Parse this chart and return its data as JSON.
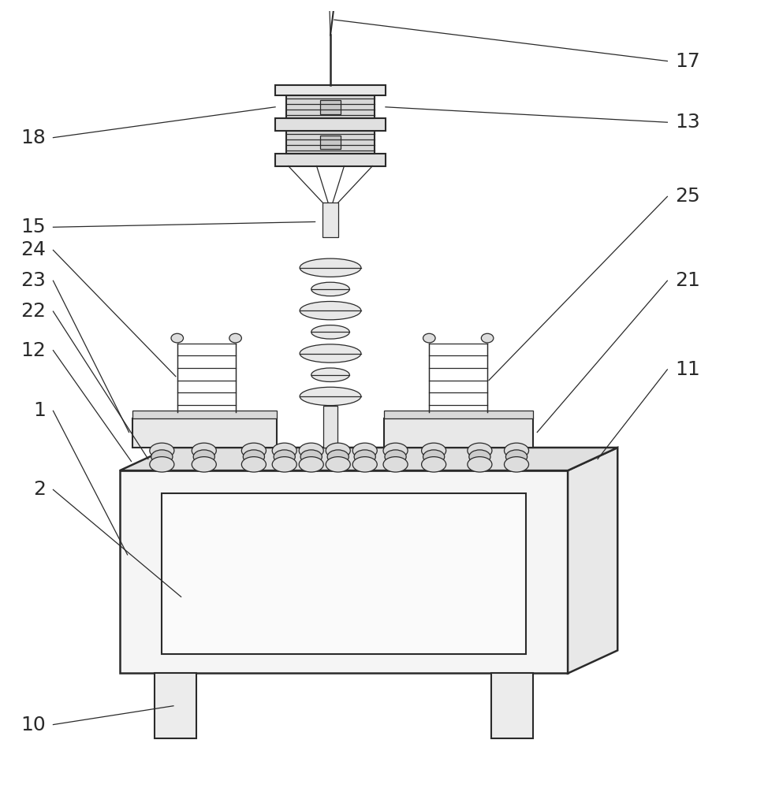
{
  "bg_color": "#ffffff",
  "line_color": "#2a2a2a",
  "lw": 1.5,
  "lw_thin": 0.9,
  "lw_thick": 1.8,
  "label_fontsize": 18,
  "fig_w": 9.74,
  "fig_h": 10.0
}
